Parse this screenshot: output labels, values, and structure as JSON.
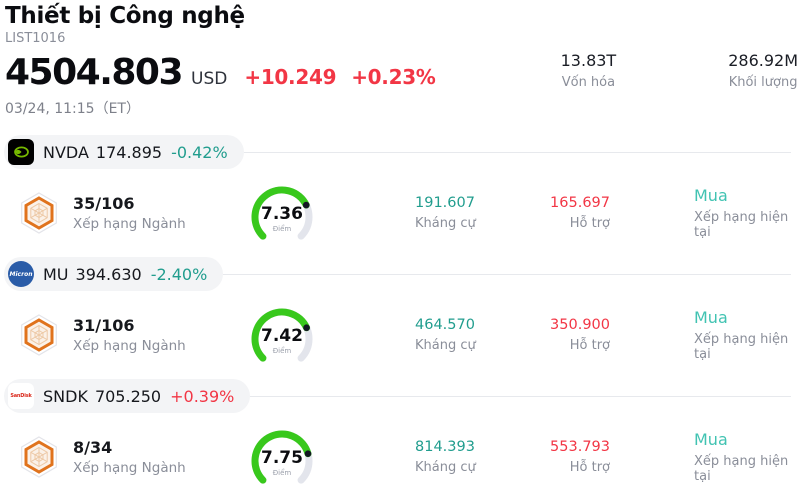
{
  "header": {
    "title": "Thiết bị Công nghệ",
    "list_id": "LIST1016",
    "price": "4504.803",
    "currency": "USD",
    "change": "+10.249",
    "change_pct": "+0.23%",
    "datetime": "03/24, 11:15（ET）",
    "stats": [
      {
        "value": "13.83T",
        "label": "Vốn hóa"
      },
      {
        "value": "286.92M",
        "label": "Khối lượng"
      }
    ]
  },
  "colors": {
    "up": "#f23645",
    "down": "#219d8e",
    "rating": "#41c3b2",
    "gauge_green": "#38c81c",
    "gauge_track": "#e3e5ec"
  },
  "stocks": [
    {
      "symbol": "NVDA",
      "price": "174.895",
      "change_pct": "-0.42%",
      "dir": "down",
      "rank": "35/106",
      "rank_label": "Xếp hạng Ngành",
      "score": 7.36,
      "score_max": 10,
      "score_label": "Điểm",
      "resistance": "191.607",
      "resistance_label": "Kháng cự",
      "support": "165.697",
      "support_label": "Hỗ trợ",
      "rating": "Mua",
      "rating_label": "Xếp hạng hiện tại"
    },
    {
      "symbol": "MU",
      "price": "394.630",
      "change_pct": "-2.40%",
      "dir": "down",
      "logo_text": "Micron",
      "rank": "31/106",
      "rank_label": "Xếp hạng Ngành",
      "score": 7.42,
      "score_max": 10,
      "score_label": "Điểm",
      "resistance": "464.570",
      "resistance_label": "Kháng cự",
      "support": "350.900",
      "support_label": "Hỗ trợ",
      "rating": "Mua",
      "rating_label": "Xếp hạng hiện tại"
    },
    {
      "symbol": "SNDK",
      "price": "705.250",
      "change_pct": "+0.39%",
      "dir": "up",
      "logo_text": "SanDisk",
      "rank": "8/34",
      "rank_label": "Xếp hạng Ngành",
      "score": 7.75,
      "score_max": 10,
      "score_label": "Điểm",
      "resistance": "814.393",
      "resistance_label": "Kháng cự",
      "support": "553.793",
      "support_label": "Hỗ trợ",
      "rating": "Mua",
      "rating_label": "Xếp hạng hiện tại"
    }
  ]
}
